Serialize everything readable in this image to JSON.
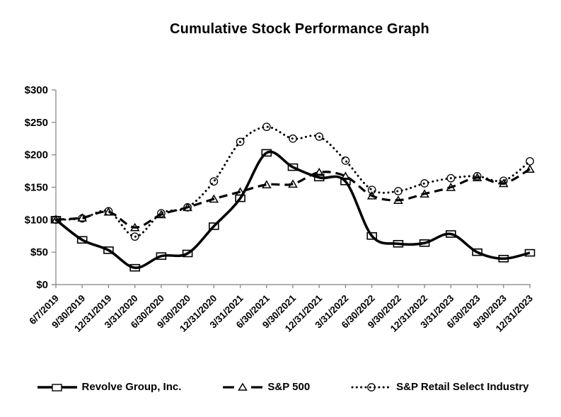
{
  "page": {
    "title": "Cumulative Stock Performance Graph"
  },
  "chart_data": {
    "type": "line",
    "title": "Cumulative Stock Performance Graph",
    "categories": [
      "6/7/2019",
      "9/30/2019",
      "12/31/2019",
      "3/31/2020",
      "6/30/2020",
      "9/30/2020",
      "12/31/2020",
      "3/31/2021",
      "6/30/2021",
      "9/30/2021",
      "12/31/2021",
      "3/31/2022",
      "6/30/2022",
      "9/30/2022",
      "12/31/2022",
      "3/31/2023",
      "6/30/2023",
      "9/30/2023",
      "12/31/2023"
    ],
    "series": [
      {
        "name": "Revolve Group, Inc.",
        "line": "solid",
        "marker": "square",
        "values": [
          100,
          69,
          53,
          26,
          44,
          48,
          90,
          133,
          203,
          181,
          165,
          159,
          75,
          63,
          64,
          78,
          50,
          40,
          49
        ]
      },
      {
        "name": "S&P 500",
        "line": "dashed",
        "marker": "triangle",
        "values": [
          100,
          103,
          112,
          88,
          108,
          119,
          132,
          143,
          154,
          155,
          173,
          167,
          137,
          130,
          140,
          150,
          165,
          156,
          178
        ]
      },
      {
        "name": "S&P Retail Select Industry",
        "line": "dotted",
        "marker": "circle",
        "values": [
          100,
          102,
          113,
          74,
          110,
          119,
          159,
          220,
          243,
          225,
          228,
          191,
          146,
          144,
          156,
          164,
          167,
          160,
          190
        ]
      }
    ],
    "xlabel": "",
    "ylabel": "",
    "ylim": [
      0,
      300
    ],
    "ytick_interval": 50,
    "ytick_labels": [
      "$0",
      "$50",
      "$100",
      "$150",
      "$200",
      "$250",
      "$300"
    ],
    "grid": false,
    "legend_position": "bottom",
    "colors": {
      "series": "#000000",
      "axis": "#808080",
      "text": "#000000",
      "background": "#ffffff"
    }
  }
}
